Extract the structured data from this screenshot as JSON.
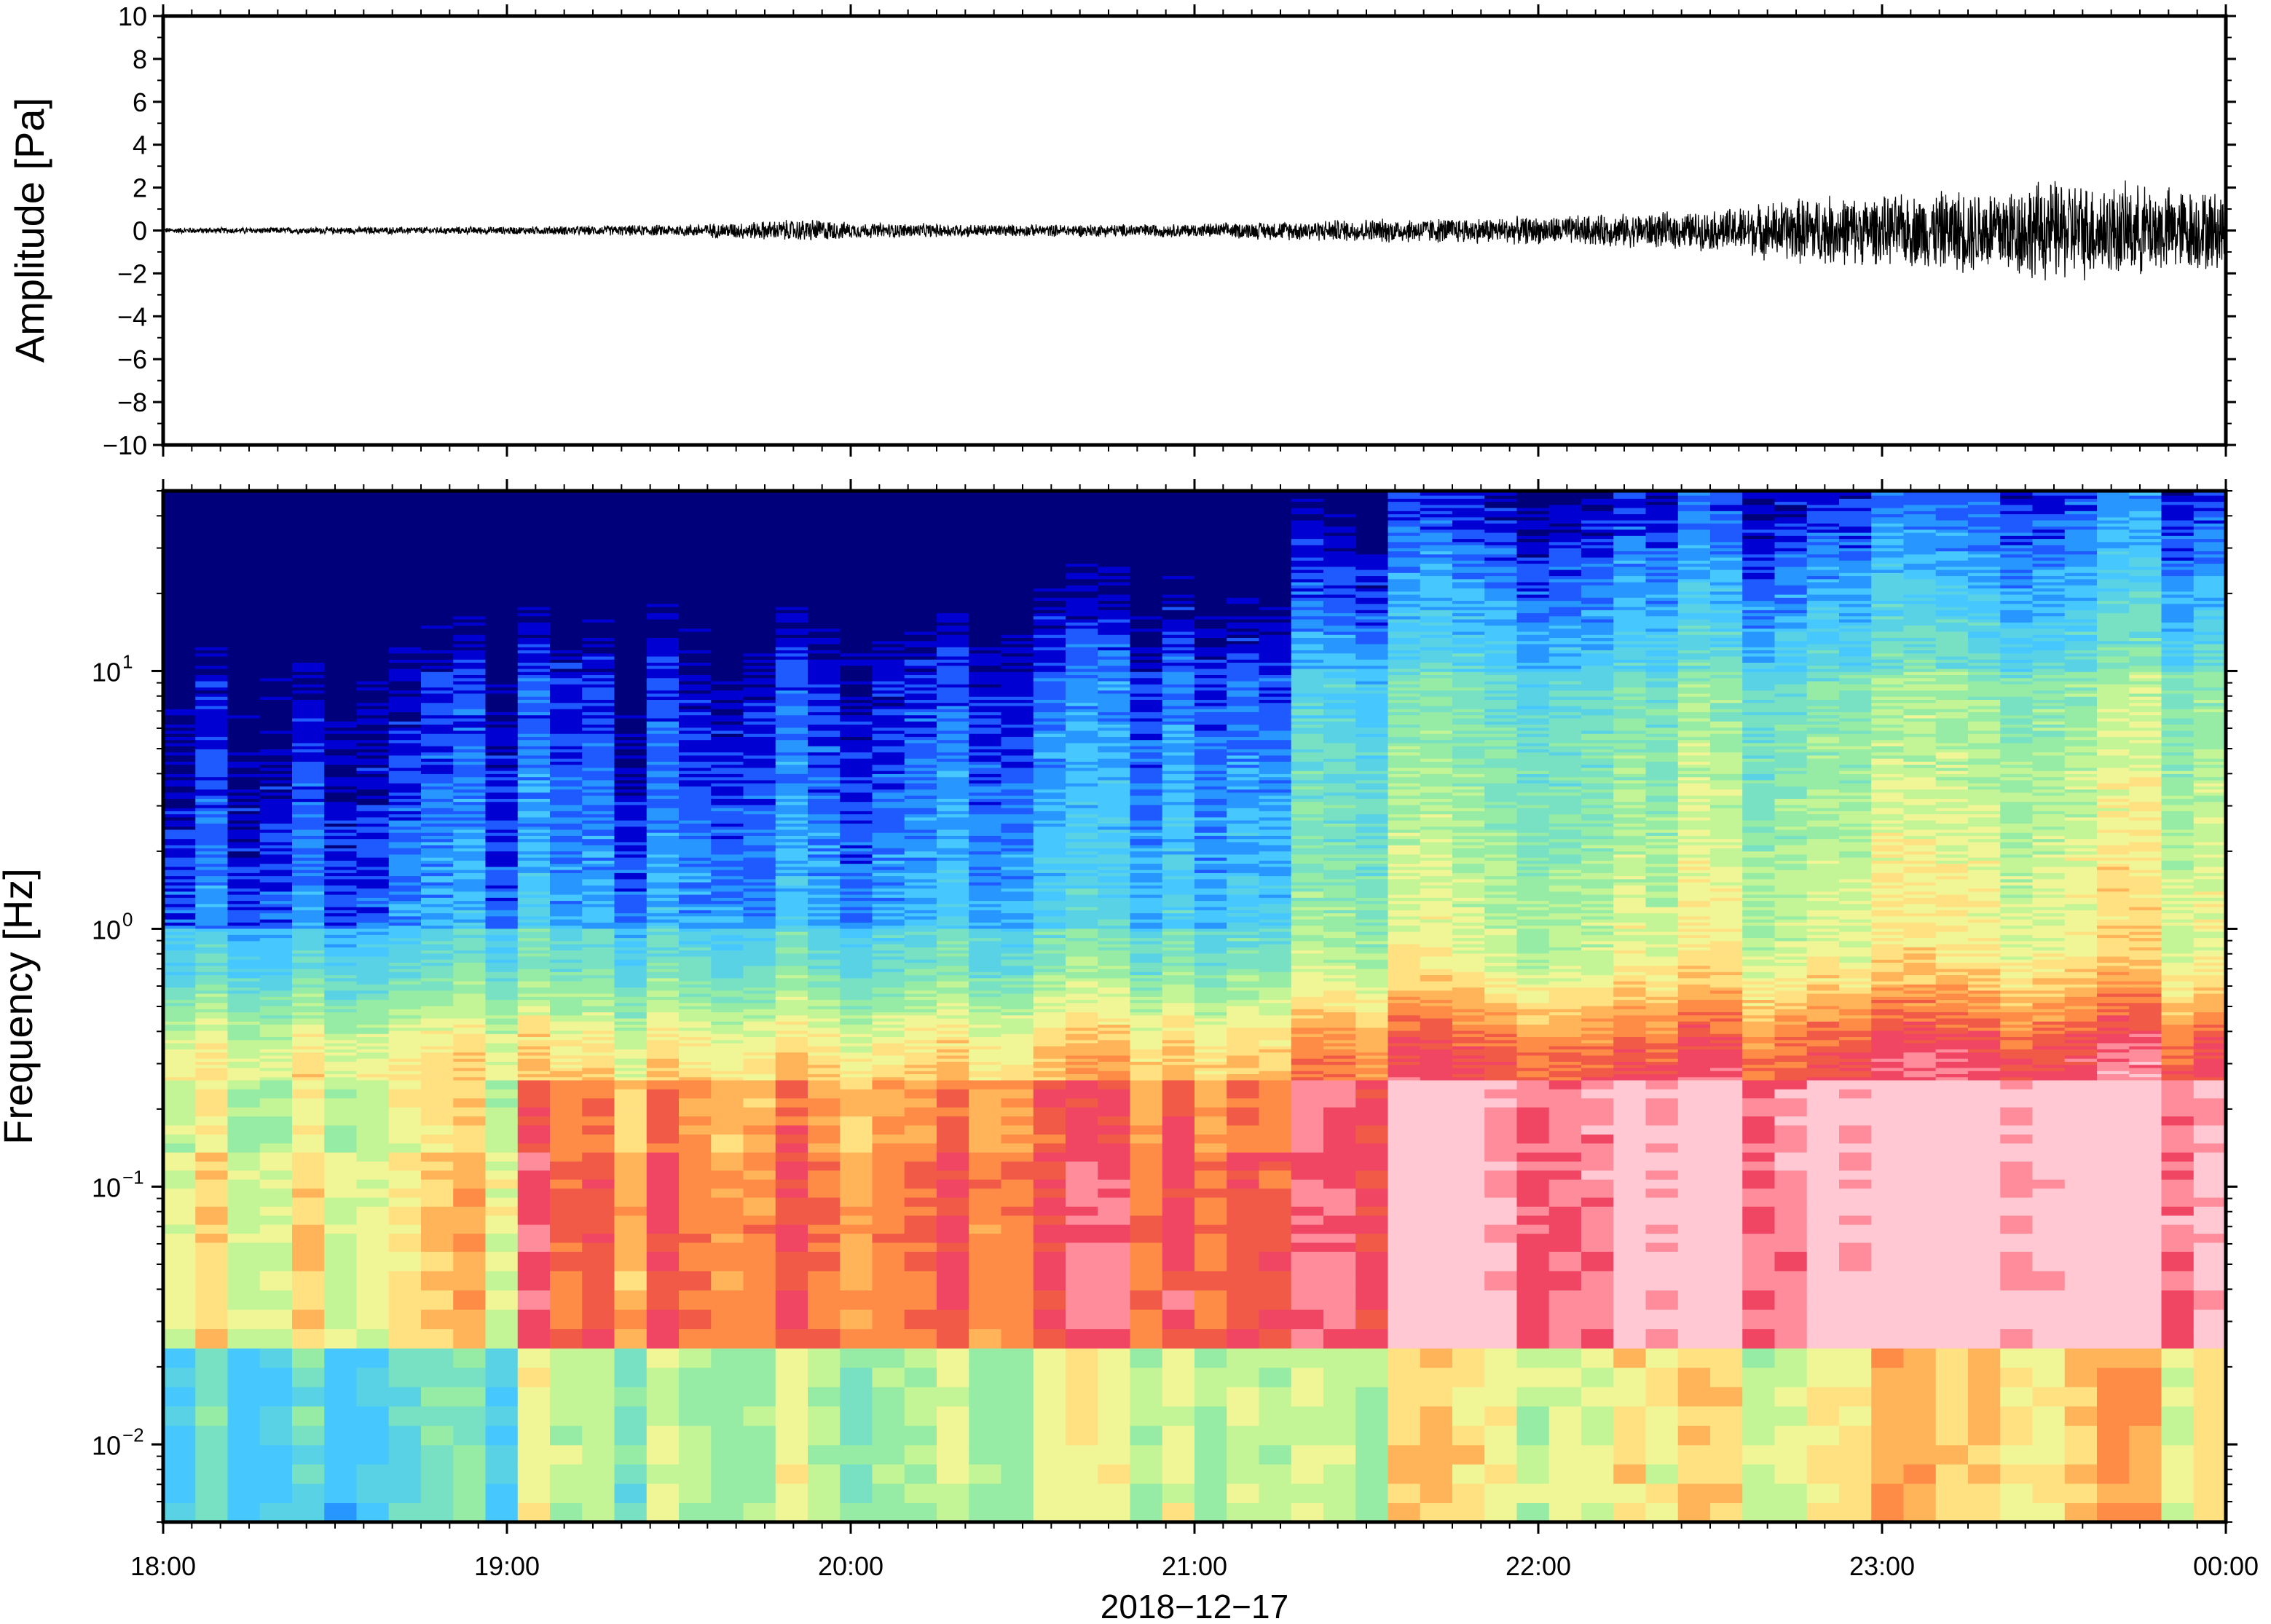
{
  "chart_data": [
    {
      "type": "line",
      "panel": "waveform",
      "ylabel": "Amplitude [Pa]",
      "ylim": [
        -10,
        10
      ],
      "yticks": [
        10,
        8,
        6,
        4,
        2,
        0,
        -2,
        -4,
        -6,
        -8,
        -10
      ],
      "ytick_labels": [
        "10",
        "8",
        "6",
        "4",
        "2",
        "0",
        "−2",
        "−4",
        "−6",
        "−8",
        "−10"
      ],
      "xlim": [
        "18:00",
        "00:00"
      ],
      "envelope": {
        "time_hours": [
          18.0,
          19.0,
          19.5,
          19.9,
          20.0,
          20.5,
          21.0,
          21.3,
          21.5,
          22.0,
          22.5,
          22.8,
          23.0,
          23.5,
          24.0
        ],
        "max_abs_pa": [
          0.15,
          0.2,
          0.3,
          0.6,
          0.4,
          0.3,
          0.35,
          0.5,
          0.6,
          0.7,
          1.0,
          1.8,
          1.7,
          2.6,
          2.0
        ]
      },
      "grid": false
    },
    {
      "type": "heatmap",
      "panel": "spectrogram",
      "ylabel": "Frequency [Hz]",
      "yscale": "log",
      "ylim": [
        0.005,
        50
      ],
      "ytick_labels": [
        {
          "base": "10",
          "exp": "−2",
          "value": 0.01
        },
        {
          "base": "10",
          "exp": "−1",
          "value": 0.1
        },
        {
          "base": "10",
          "exp": "0",
          "value": 1
        },
        {
          "base": "10",
          "exp": "1",
          "value": 10
        }
      ],
      "colormap": [
        "#00007a",
        "#0000d2",
        "#1e5aff",
        "#2896ff",
        "#46c8ff",
        "#5ad2e6",
        "#78e1c3",
        "#96eba5",
        "#c3f596",
        "#f0f596",
        "#ffe182",
        "#ffb45a",
        "#ff8c46",
        "#f05a46",
        "#f04664",
        "#ff8c9b",
        "#ffc8d2"
      ],
      "note_levels": "relative power, low (dark blue) to high (pink)"
    }
  ],
  "x_axis": {
    "tick_labels": [
      "18:00",
      "19:00",
      "20:00",
      "21:00",
      "22:00",
      "23:00",
      "00:00"
    ],
    "date_label": "2018−12−17"
  }
}
